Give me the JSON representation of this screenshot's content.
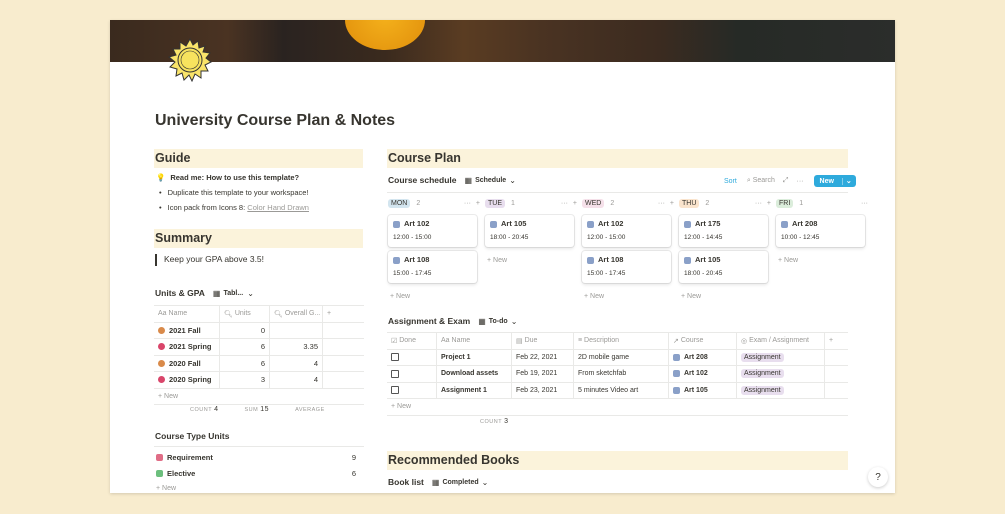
{
  "page": {
    "title": "University Course Plan & Notes",
    "icon": "sun-icon"
  },
  "guide": {
    "heading": "Guide",
    "items": [
      {
        "icon": "lightbulb-icon",
        "text": "Read me: How to use this template?"
      },
      {
        "text": "Duplicate this template to your workspace!"
      },
      {
        "text": "Icon pack from Icons 8: ",
        "link": "Color Hand Drawn"
      }
    ]
  },
  "summary": {
    "heading": "Summary",
    "quote": "Keep your GPA above 3.5!"
  },
  "units": {
    "title": "Units & GPA",
    "view": "Tabl...",
    "columns": [
      "Name",
      "Units",
      "Overall G..."
    ],
    "rows": [
      {
        "name": "2021 Fall",
        "units": "0",
        "gpa": "",
        "icon": "leaf-icon"
      },
      {
        "name": "2021 Spring",
        "units": "6",
        "gpa": "3.35",
        "icon": "flower-icon"
      },
      {
        "name": "2020 Fall",
        "units": "6",
        "gpa": "4",
        "icon": "leaf-icon"
      },
      {
        "name": "2020 Spring",
        "units": "3",
        "gpa": "4",
        "icon": "flower-icon"
      }
    ],
    "new": "New",
    "footer": {
      "count_label": "COUNT",
      "count": "4",
      "sum_label": "SUM",
      "sum": "15",
      "avg_label": "AVERAGE"
    }
  },
  "course_type": {
    "title": "Course Type Units",
    "rows": [
      {
        "name": "Requirement",
        "value": "9",
        "color": "#e06d86"
      },
      {
        "name": "Elective",
        "value": "6",
        "color": "#6cbf7d"
      }
    ],
    "new": "New"
  },
  "course_plan": {
    "heading": "Course Plan",
    "schedule_title": "Course schedule",
    "view": "Schedule",
    "sort": "Sort",
    "search": "Search",
    "new": "New",
    "accent": "#2eaadc",
    "days": [
      {
        "label": "MON",
        "count": "2",
        "color": "#d3e5ef",
        "cards": [
          {
            "name": "Art 102",
            "time": "12:00 - 15:00"
          },
          {
            "name": "Art 108",
            "time": "15:00 - 17:45"
          }
        ]
      },
      {
        "label": "TUE",
        "count": "1",
        "color": "#e8deee",
        "cards": [
          {
            "name": "Art 105",
            "time": "18:00 - 20:45"
          }
        ]
      },
      {
        "label": "WED",
        "count": "2",
        "color": "#f5e0e9",
        "cards": [
          {
            "name": "Art 102",
            "time": "12:00 - 15:00"
          },
          {
            "name": "Art 108",
            "time": "15:00 - 17:45"
          }
        ]
      },
      {
        "label": "THU",
        "count": "2",
        "color": "#fae4cd",
        "cards": [
          {
            "name": "Art 175",
            "time": "12:00 - 14:45"
          },
          {
            "name": "Art 105",
            "time": "18:00 - 20:45"
          }
        ]
      },
      {
        "label": "FRI",
        "count": "1",
        "color": "#dbeddb",
        "cards": [
          {
            "name": "Art 208",
            "time": "10:00 - 12:45"
          }
        ]
      }
    ],
    "new_label": "New"
  },
  "assign": {
    "title": "Assignment & Exam",
    "view": "To-do",
    "columns": [
      "Done",
      "Name",
      "Due",
      "Description",
      "Course",
      "Exam / Assignment"
    ],
    "rows": [
      {
        "name": "Project 1",
        "due": "Feb 22, 2021",
        "desc": "2D mobile game",
        "course": "Art 208",
        "type": "Assignment"
      },
      {
        "name": "Download assets",
        "due": "Feb 19, 2021",
        "desc": "From sketchfab",
        "course": "Art 102",
        "type": "Assignment"
      },
      {
        "name": "Assignment 1",
        "due": "Feb 23, 2021",
        "desc": "5 minutes Video art",
        "course": "Art 105",
        "type": "Assignment"
      }
    ],
    "new": "New",
    "count_label": "COUNT",
    "count": "3"
  },
  "books": {
    "heading": "Recommended Books",
    "title": "Book list",
    "view": "Completed"
  },
  "help": "?"
}
